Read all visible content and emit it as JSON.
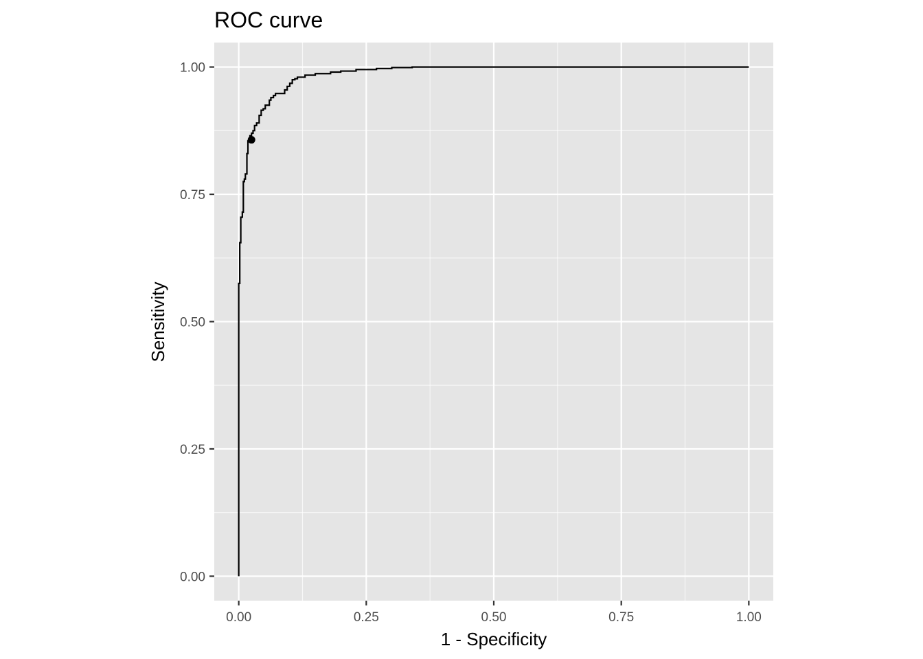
{
  "chart_data": {
    "type": "line",
    "title": "ROC curve",
    "xlabel": "1 - Specificity",
    "ylabel": "Sensitivity",
    "xlim": [
      -0.048,
      1.048
    ],
    "ylim": [
      -0.048,
      1.048
    ],
    "x_ticks": [
      0,
      0.25,
      0.5,
      0.75,
      1
    ],
    "y_ticks": [
      0,
      0.25,
      0.5,
      0.75,
      1
    ],
    "x_tick_labels": [
      "0.00",
      "0.25",
      "0.50",
      "0.75",
      "1.00"
    ],
    "y_tick_labels": [
      "0.00",
      "0.25",
      "0.50",
      "0.75",
      "1.00"
    ],
    "grid": true,
    "legend": "none",
    "colors": {
      "panel_background": "#e5e5e5",
      "grid": "#ffffff",
      "line": "#000000",
      "tick_label": "#4d4d4d",
      "tick_mark": "#333333"
    },
    "series": [
      {
        "x": [
          0,
          0,
          0.002,
          0.002,
          0.004,
          0.004,
          0.007,
          0.007,
          0.009,
          0.009,
          0.011,
          0.011,
          0.013,
          0.013,
          0.016,
          0.016,
          0.018,
          0.018,
          0.022,
          0.022,
          0.025,
          0.025,
          0.028,
          0.028,
          0.031,
          0.031,
          0.035,
          0.035,
          0.04,
          0.04,
          0.044,
          0.044,
          0.048,
          0.048,
          0.052,
          0.052,
          0.06,
          0.06,
          0.063,
          0.063,
          0.068,
          0.068,
          0.072,
          0.072,
          0.09,
          0.09,
          0.095,
          0.095,
          0.1,
          0.1,
          0.105,
          0.105,
          0.11,
          0.11,
          0.115,
          0.115,
          0.13,
          0.13,
          0.15,
          0.15,
          0.18,
          0.18,
          0.2,
          0.2,
          0.23,
          0.23,
          0.27,
          0.27,
          0.3,
          0.3,
          0.34,
          0.34,
          0.52,
          0.52,
          1.0
        ],
        "y": [
          0,
          0.575,
          0.575,
          0.655,
          0.655,
          0.705,
          0.705,
          0.715,
          0.715,
          0.775,
          0.775,
          0.78,
          0.78,
          0.79,
          0.79,
          0.83,
          0.83,
          0.855,
          0.855,
          0.865,
          0.865,
          0.87,
          0.87,
          0.875,
          0.875,
          0.885,
          0.885,
          0.89,
          0.89,
          0.905,
          0.905,
          0.915,
          0.915,
          0.918,
          0.918,
          0.925,
          0.925,
          0.935,
          0.935,
          0.94,
          0.94,
          0.944,
          0.944,
          0.948,
          0.948,
          0.955,
          0.955,
          0.962,
          0.962,
          0.968,
          0.968,
          0.975,
          0.975,
          0.977,
          0.977,
          0.98,
          0.98,
          0.984,
          0.984,
          0.987,
          0.987,
          0.99,
          0.99,
          0.992,
          0.992,
          0.995,
          0.995,
          0.997,
          0.997,
          0.999,
          0.999,
          1.0,
          1.0,
          1.0,
          1.0
        ]
      }
    ],
    "highlight_point": {
      "x": 0.025,
      "y": 0.857
    }
  }
}
